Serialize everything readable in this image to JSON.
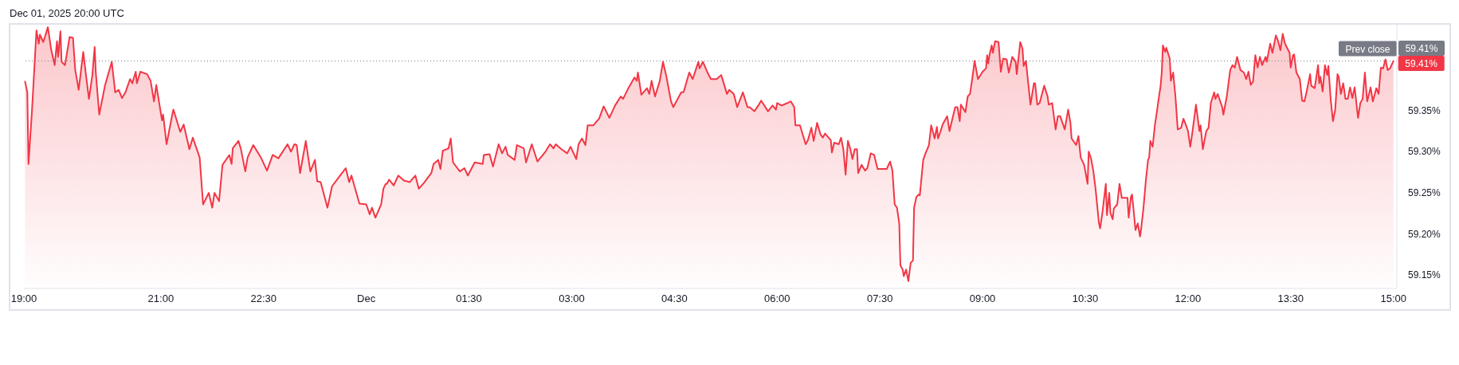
{
  "chart_data": {
    "type": "area",
    "title": "Dec 01, 2025 20:00 UTC",
    "color": "#f23645",
    "annotations": [
      "59.41%",
      {
        "text": "59.41%",
        "x": "2025-12-01T15:00",
        "y": 59.41
      }
    ],
    "x": [
      "2025-11-30T19:01",
      "2025-11-30T19:03",
      "2025-11-30T19:04",
      "2025-11-30T19:07",
      "2025-11-30T19:11",
      "2025-11-30T19:13",
      "2025-11-30T19:14",
      "2025-11-30T19:17",
      "2025-11-30T19:21",
      "2025-11-30T19:24",
      "2025-11-30T19:27",
      "2025-11-30T19:29",
      "2025-11-30T19:30",
      "2025-11-30T19:32",
      "2025-11-30T19:33",
      "2025-11-30T19:36",
      "2025-11-30T19:40",
      "2025-11-30T19:43",
      "2025-11-30T19:45",
      "2025-11-30T19:48",
      "2025-11-30T19:52",
      "2025-11-30T19:55",
      "2025-11-30T19:57",
      "2025-11-30T20:00",
      "2025-11-30T20:02",
      "2025-11-30T20:03",
      "2025-11-30T20:06",
      "2025-11-30T20:11",
      "2025-11-30T20:17",
      "2025-11-30T20:20",
      "2025-11-30T20:23",
      "2025-11-30T20:26",
      "2025-11-30T20:29",
      "2025-11-30T20:33",
      "2025-11-30T20:35",
      "2025-11-30T20:38",
      "2025-11-30T20:39",
      "2025-11-30T20:42",
      "2025-11-30T20:48",
      "2025-11-30T20:51",
      "2025-11-30T20:54",
      "2025-11-30T20:56",
      "2025-11-30T21:01",
      "2025-11-30T21:02",
      "2025-11-30T21:05",
      "2025-11-30T21:10",
      "2025-11-30T21:11",
      "2025-11-30T21:17",
      "2025-11-30T21:20",
      "2025-11-30T21:25",
      "2025-11-30T21:28",
      "2025-11-30T21:34",
      "2025-11-30T21:37",
      "2025-11-30T21:42",
      "2025-11-30T21:45",
      "2025-11-30T21:47",
      "2025-11-30T21:51",
      "2025-11-30T21:54",
      "2025-11-30T22:00",
      "2025-11-30T22:02",
      "2025-11-30T22:03",
      "2025-11-30T22:08",
      "2025-11-30T22:10",
      "2025-11-30T22:14",
      "2025-11-30T22:16",
      "2025-11-30T22:21",
      "2025-11-30T22:28",
      "2025-11-30T22:33",
      "2025-11-30T22:38",
      "2025-11-30T22:43",
      "2025-11-30T22:51",
      "2025-11-30T22:54",
      "2025-11-30T22:57",
      "2025-11-30T22:59",
      "2025-11-30T23:02",
      "2025-11-30T23:07",
      "2025-11-30T23:11",
      "2025-11-30T23:15",
      "2025-11-30T23:17",
      "2025-11-30T23:20",
      "2025-11-30T23:26",
      "2025-11-30T23:30",
      "2025-11-30T23:37",
      "2025-11-30T23:42",
      "2025-11-30T23:45",
      "2025-11-30T23:47",
      "2025-11-30T23:54",
      "2025-12-01T00:00",
      "2025-12-01T00:03",
      "2025-12-01T00:05",
      "2025-12-01T00:08",
      "2025-12-01T00:13",
      "2025-12-01T00:15",
      "2025-12-01T00:17",
      "2025-12-01T00:18",
      "2025-12-01T00:20",
      "2025-12-01T00:24",
      "2025-12-01T00:28",
      "2025-12-01T00:33",
      "2025-12-01T00:38",
      "2025-12-01T00:43",
      "2025-12-01T00:46",
      "2025-12-01T00:51",
      "2025-12-01T00:57",
      "2025-12-01T00:59",
      "2025-12-01T01:03",
      "2025-12-01T01:05",
      "2025-12-01T01:07",
      "2025-12-01T01:12",
      "2025-12-01T01:14",
      "2025-12-01T01:16",
      "2025-12-01T01:22",
      "2025-12-01T01:26",
      "2025-12-01T01:29",
      "2025-12-01T01:35",
      "2025-12-01T01:42",
      "2025-12-01T01:43",
      "2025-12-01T01:48",
      "2025-12-01T01:51",
      "2025-12-01T01:56",
      "2025-12-01T01:59",
      "2025-12-01T02:02",
      "2025-12-01T02:04",
      "2025-12-01T02:10",
      "2025-12-01T02:12",
      "2025-12-01T02:18",
      "2025-12-01T02:20",
      "2025-12-01T02:25",
      "2025-12-01T02:30",
      "2025-12-01T02:37",
      "2025-12-01T02:41",
      "2025-12-01T02:44",
      "2025-12-01T02:46",
      "2025-12-01T02:51",
      "2025-12-01T02:56",
      "2025-12-01T02:59",
      "2025-12-01T03:04",
      "2025-12-01T03:06",
      "2025-12-01T03:09",
      "2025-12-01T03:12",
      "2025-12-01T03:14",
      "2025-12-01T03:19",
      "2025-12-01T03:24",
      "2025-12-01T03:28",
      "2025-12-01T03:33",
      "2025-12-01T03:38",
      "2025-12-01T03:43",
      "2025-12-01T03:45",
      "2025-12-01T03:50",
      "2025-12-01T03:55",
      "2025-12-01T03:57",
      "2025-12-01T03:58",
      "2025-12-01T04:01",
      "2025-12-01T04:06",
      "2025-12-01T04:08",
      "2025-12-01T04:10",
      "2025-12-01T04:13",
      "2025-12-01T04:17",
      "2025-12-01T04:20",
      "2025-12-01T04:23",
      "2025-12-01T04:27",
      "2025-12-01T04:29",
      "2025-12-01T04:36",
      "2025-12-01T04:38",
      "2025-12-01T04:43",
      "2025-12-01T04:46",
      "2025-12-01T04:51",
      "2025-12-01T04:52",
      "2025-12-01T04:55",
      "2025-12-01T04:59",
      "2025-12-01T05:02",
      "2025-12-01T05:07",
      "2025-12-01T05:11",
      "2025-12-01T05:16",
      "2025-12-01T05:18",
      "2025-12-01T05:22",
      "2025-12-01T05:25",
      "2025-12-01T05:30",
      "2025-12-01T05:34",
      "2025-12-01T05:36",
      "2025-12-01T05:40",
      "2025-12-01T05:44",
      "2025-12-01T05:46",
      "2025-12-01T05:52",
      "2025-12-01T05:56",
      "2025-12-01T05:59",
      "2025-12-01T06:00",
      "2025-12-01T06:04",
      "2025-12-01T06:09",
      "2025-12-01T06:12",
      "2025-12-01T06:15",
      "2025-12-01T06:16",
      "2025-12-01T06:20",
      "2025-12-01T06:25",
      "2025-12-01T06:27",
      "2025-12-01T06:30",
      "2025-12-01T06:32",
      "2025-12-01T06:35",
      "2025-12-01T06:38",
      "2025-12-01T06:40",
      "2025-12-01T06:42",
      "2025-12-01T06:47",
      "2025-12-01T06:48",
      "2025-12-01T06:50",
      "2025-12-01T06:54",
      "2025-12-01T06:56",
      "2025-12-01T06:58",
      "2025-12-01T07:00",
      "2025-12-01T07:02",
      "2025-12-01T07:04",
      "2025-12-01T07:06",
      "2025-12-01T07:08",
      "2025-12-01T07:10",
      "2025-12-01T07:11",
      "2025-12-01T07:14",
      "2025-12-01T07:17",
      "2025-12-01T07:19",
      "2025-12-01T07:22",
      "2025-12-01T07:25",
      "2025-12-01T07:28",
      "2025-12-01T07:36",
      "2025-12-01T07:39",
      "2025-12-01T07:41",
      "2025-12-01T07:43",
      "2025-12-01T07:45",
      "2025-12-01T07:47",
      "2025-12-01T07:48",
      "2025-12-01T07:50",
      "2025-12-01T07:51",
      "2025-12-01T07:53",
      "2025-12-01T07:55",
      "2025-12-01T07:57",
      "2025-12-01T07:59",
      "2025-12-01T08:00",
      "2025-12-01T08:02",
      "2025-12-01T08:04",
      "2025-12-01T08:05",
      "2025-12-01T08:08",
      "2025-12-01T08:10",
      "2025-12-01T08:13",
      "2025-12-01T08:15",
      "2025-12-01T08:18",
      "2025-12-01T08:20",
      "2025-12-01T08:21",
      "2025-12-01T08:23",
      "2025-12-01T08:25",
      "2025-12-01T08:29",
      "2025-12-01T08:31",
      "2025-12-01T08:36",
      "2025-12-01T08:38",
      "2025-12-01T08:40",
      "2025-12-01T08:41",
      "2025-12-01T08:45",
      "2025-12-01T08:47",
      "2025-12-01T08:49",
      "2025-12-01T08:51",
      "2025-12-01T08:53",
      "2025-12-01T08:56",
      "2025-12-01T09:00",
      "2025-12-01T09:03",
      "2025-12-01T09:04",
      "2025-12-01T09:05",
      "2025-12-01T09:06",
      "2025-12-01T09:08",
      "2025-12-01T09:09",
      "2025-12-01T09:11",
      "2025-12-01T09:14",
      "2025-12-01T09:16",
      "2025-12-01T09:18",
      "2025-12-01T09:21",
      "2025-12-01T09:23",
      "2025-12-01T09:26",
      "2025-12-01T09:29",
      "2025-12-01T09:30",
      "2025-12-01T09:33",
      "2025-12-01T09:35",
      "2025-12-01T09:36",
      "2025-12-01T09:38",
      "2025-12-01T09:40",
      "2025-12-01T09:42",
      "2025-12-01T09:45",
      "2025-12-01T09:46",
      "2025-12-01T09:48",
      "2025-12-01T09:50",
      "2025-12-01T09:54",
      "2025-12-01T09:57",
      "2025-12-01T09:58",
      "2025-12-01T10:01",
      "2025-12-01T10:04",
      "2025-12-01T10:06",
      "2025-12-01T10:08",
      "2025-12-01T10:12",
      "2025-12-01T10:15",
      "2025-12-01T10:17",
      "2025-12-01T10:18",
      "2025-12-01T10:22",
      "2025-12-01T10:24",
      "2025-12-01T10:26",
      "2025-12-01T10:29",
      "2025-12-01T10:32",
      "2025-12-01T10:33",
      "2025-12-01T10:35",
      "2025-12-01T10:37",
      "2025-12-01T10:39",
      "2025-12-01T10:42",
      "2025-12-01T10:43",
      "2025-12-01T10:45",
      "2025-12-01T10:48",
      "2025-12-01T10:49",
      "2025-12-01T10:51",
      "2025-12-01T10:52",
      "2025-12-01T10:54",
      "2025-12-01T10:55",
      "2025-12-01T10:58",
      "2025-12-01T11:00",
      "2025-12-01T11:02",
      "2025-12-01T11:07",
      "2025-12-01T11:08",
      "2025-12-01T11:10",
      "2025-12-01T11:11",
      "2025-12-01T11:14",
      "2025-12-01T11:16",
      "2025-12-01T11:18",
      "2025-12-01T11:19",
      "2025-12-01T11:21",
      "2025-12-01T11:23",
      "2025-12-01T11:25",
      "2025-12-01T11:26",
      "2025-12-01T11:27",
      "2025-12-01T11:29",
      "2025-12-01T11:31",
      "2025-12-01T11:33",
      "2025-12-01T11:34",
      "2025-12-01T11:36",
      "2025-12-01T11:37",
      "2025-12-01T11:38",
      "2025-12-01T11:40",
      "2025-12-01T11:41",
      "2025-12-01T11:44",
      "2025-12-01T11:45",
      "2025-12-01T11:47",
      "2025-12-01T11:49",
      "2025-12-01T11:51",
      "2025-12-01T11:54",
      "2025-12-01T11:56",
      "2025-12-01T11:58",
      "2025-12-01T12:00",
      "2025-12-01T12:02",
      "2025-12-01T12:04",
      "2025-12-01T12:07",
      "2025-12-01T12:10",
      "2025-12-01T12:11",
      "2025-12-01T12:13",
      "2025-12-01T12:16",
      "2025-12-01T12:18",
      "2025-12-01T12:20",
      "2025-12-01T12:23",
      "2025-12-01T12:24",
      "2025-12-01T12:26",
      "2025-12-01T12:30",
      "2025-12-01T12:31",
      "2025-12-01T12:34",
      "2025-12-01T12:37",
      "2025-12-01T12:39",
      "2025-12-01T12:41",
      "2025-12-01T12:43",
      "2025-12-01T12:46",
      "2025-12-01T12:49",
      "2025-12-01T12:51",
      "2025-12-01T12:53",
      "2025-12-01T12:55",
      "2025-12-01T12:57",
      "2025-12-01T12:59",
      "2025-12-01T13:01",
      "2025-12-01T13:03",
      "2025-12-01T13:05",
      "2025-12-01T13:08",
      "2025-12-01T13:09",
      "2025-12-01T13:12",
      "2025-12-01T13:14",
      "2025-12-01T13:17",
      "2025-12-01T13:19",
      "2025-12-01T13:21",
      "2025-12-01T13:23",
      "2025-12-01T13:25",
      "2025-12-01T13:29",
      "2025-12-01T13:30",
      "2025-12-01T13:32",
      "2025-12-01T13:33",
      "2025-12-01T13:35",
      "2025-12-01T13:38",
      "2025-12-01T13:40",
      "2025-12-01T13:42",
      "2025-12-01T13:44",
      "2025-12-01T13:47",
      "2025-12-01T13:48",
      "2025-12-01T13:51",
      "2025-12-01T13:54",
      "2025-12-01T13:55",
      "2025-12-01T13:56",
      "2025-12-01T13:58",
      "2025-12-01T14:00",
      "2025-12-01T14:02",
      "2025-12-01T14:03",
      "2025-12-01T14:05",
      "2025-12-01T14:07",
      "2025-12-01T14:09",
      "2025-12-01T14:11",
      "2025-12-01T14:12",
      "2025-12-01T14:14",
      "2025-12-01T14:16",
      "2025-12-01T14:18",
      "2025-12-01T14:20",
      "2025-12-01T14:22",
      "2025-12-01T14:24",
      "2025-12-01T14:26",
      "2025-12-01T14:29",
      "2025-12-01T14:31",
      "2025-12-01T14:33",
      "2025-12-01T14:35",
      "2025-12-01T14:37",
      "2025-12-01T14:40",
      "2025-12-01T14:42",
      "2025-12-01T14:45",
      "2025-12-01T14:47",
      "2025-12-01T14:49",
      "2025-12-01T14:51",
      "2025-12-01T14:53",
      "2025-12-01T14:55",
      "2025-12-01T14:57",
      "2025-12-01T15:00"
    ],
    "values": [
      59.385,
      59.372,
      59.285,
      59.348,
      59.447,
      59.431,
      59.442,
      59.433,
      59.451,
      59.423,
      59.405,
      59.434,
      59.415,
      59.446,
      59.409,
      59.405,
      59.439,
      59.438,
      59.399,
      59.375,
      59.421,
      59.386,
      59.364,
      59.393,
      59.427,
      59.396,
      59.345,
      59.38,
      59.409,
      59.372,
      59.375,
      59.365,
      59.372,
      59.388,
      59.383,
      59.397,
      59.383,
      59.397,
      59.394,
      59.386,
      59.361,
      59.381,
      59.338,
      59.345,
      59.309,
      59.345,
      59.351,
      59.324,
      59.333,
      59.303,
      59.317,
      59.293,
      59.236,
      59.25,
      59.232,
      59.25,
      59.24,
      59.284,
      59.296,
      59.285,
      59.304,
      59.313,
      59.304,
      59.276,
      59.293,
      59.308,
      59.292,
      59.277,
      59.296,
      59.292,
      59.309,
      59.3,
      59.309,
      59.308,
      59.274,
      59.313,
      59.276,
      59.29,
      59.264,
      59.263,
      59.232,
      59.258,
      59.271,
      59.28,
      59.263,
      59.271,
      59.237,
      59.236,
      59.224,
      59.232,
      59.22,
      59.236,
      59.255,
      59.261,
      59.261,
      59.266,
      59.259,
      59.271,
      59.265,
      59.263,
      59.271,
      59.255,
      59.263,
      59.274,
      59.285,
      59.29,
      59.279,
      59.301,
      59.304,
      59.316,
      59.287,
      59.276,
      59.28,
      59.271,
      59.287,
      59.285,
      59.296,
      59.297,
      59.282,
      59.309,
      59.298,
      59.306,
      59.296,
      59.29,
      59.308,
      59.304,
      59.287,
      59.309,
      59.288,
      59.3,
      59.309,
      59.304,
      59.309,
      59.303,
      59.298,
      59.306,
      59.291,
      59.309,
      59.316,
      59.308,
      59.332,
      59.332,
      59.34,
      59.355,
      59.341,
      59.356,
      59.367,
      59.364,
      59.378,
      59.39,
      59.386,
      59.396,
      59.369,
      59.377,
      59.37,
      59.386,
      59.367,
      59.385,
      59.409,
      59.391,
      59.361,
      59.354,
      59.372,
      59.372,
      59.396,
      59.388,
      59.409,
      59.401,
      59.409,
      59.396,
      59.388,
      59.388,
      59.393,
      59.37,
      59.375,
      59.37,
      59.354,
      59.372,
      59.354,
      59.354,
      59.349,
      59.357,
      59.362,
      59.349,
      59.356,
      59.351,
      59.359,
      59.356,
      59.359,
      59.361,
      59.354,
      59.332,
      59.332,
      59.309,
      59.314,
      59.329,
      59.313,
      59.335,
      59.321,
      59.317,
      59.322,
      59.314,
      59.299,
      59.311,
      59.309,
      59.317,
      59.303,
      59.272,
      59.313,
      59.304,
      59.291,
      59.303,
      59.303,
      59.274,
      59.284,
      59.277,
      59.28,
      59.298,
      59.296,
      59.279,
      59.279,
      59.288,
      59.277,
      59.236,
      59.232,
      59.213,
      59.162,
      59.157,
      59.149,
      59.157,
      59.143,
      59.165,
      59.168,
      59.232,
      59.245,
      59.248,
      59.247,
      59.29,
      59.298,
      59.308,
      59.332,
      59.316,
      59.33,
      59.316,
      59.324,
      59.333,
      59.343,
      59.325,
      59.354,
      59.354,
      59.337,
      59.357,
      59.348,
      59.367,
      59.37,
      59.389,
      59.41,
      59.388,
      59.397,
      59.401,
      59.417,
      59.407,
      59.417,
      59.429,
      59.42,
      59.434,
      59.433,
      59.397,
      59.413,
      59.412,
      59.396,
      59.415,
      59.409,
      59.394,
      59.433,
      59.425,
      59.404,
      59.41,
      59.383,
      59.357,
      59.383,
      59.383,
      59.357,
      59.359,
      59.38,
      59.367,
      59.357,
      59.359,
      59.327,
      59.343,
      59.343,
      59.327,
      59.351,
      59.335,
      59.316,
      59.308,
      59.319,
      59.293,
      59.284,
      59.261,
      59.3,
      59.292,
      59.277,
      59.255,
      59.213,
      59.207,
      59.226,
      59.261,
      59.223,
      59.25,
      59.226,
      59.218,
      59.231,
      59.236,
      59.261,
      59.244,
      59.244,
      59.22,
      59.245,
      59.248,
      59.205,
      59.213,
      59.197,
      59.207,
      59.232,
      59.264,
      59.29,
      59.293,
      59.313,
      59.306,
      59.332,
      59.351,
      59.361,
      59.38,
      59.396,
      59.429,
      59.421,
      59.426,
      59.413,
      59.386,
      59.396,
      59.367,
      59.327,
      59.329,
      59.34,
      59.333,
      59.325,
      59.306,
      59.325,
      59.357,
      59.325,
      59.332,
      59.303,
      59.325,
      59.329,
      59.359,
      59.372,
      59.364,
      59.37,
      59.354,
      59.345,
      59.367,
      59.399,
      59.405,
      59.402,
      59.415,
      59.399,
      59.396,
      59.388,
      59.397,
      59.381,
      59.385,
      59.417,
      59.402,
      59.415,
      59.405,
      59.415,
      59.409,
      59.431,
      59.42,
      59.441,
      59.434,
      59.423,
      59.443,
      59.431,
      59.42,
      59.402,
      59.417,
      59.418,
      59.396,
      59.388,
      59.362,
      59.361,
      59.373,
      59.394,
      59.38,
      59.377,
      59.405,
      59.383,
      59.391,
      59.373,
      59.405,
      59.393,
      59.404,
      59.364,
      59.337,
      59.351,
      59.394,
      59.391,
      59.37,
      59.383,
      59.364,
      59.364,
      59.378,
      59.365,
      59.378,
      59.341,
      59.359,
      59.364,
      59.396,
      59.361,
      59.378,
      59.361,
      59.377,
      59.37,
      59.402,
      59.401,
      59.412,
      59.399,
      59.401,
      59.41
    ],
    "xlim": [
      "2025-11-30T19:00",
      "2025-12-01T15:03"
    ],
    "xticks": [
      {
        "value": "2025-11-30T19:00",
        "label": "19:00"
      },
      {
        "value": "2025-11-30T21:00",
        "label": "21:00"
      },
      {
        "value": "2025-11-30T22:30",
        "label": "22:30"
      },
      {
        "value": "2025-12-01T00:00",
        "label": "Dec"
      },
      {
        "value": "2025-12-01T01:30",
        "label": "01:30"
      },
      {
        "value": "2025-12-01T03:00",
        "label": "03:00"
      },
      {
        "value": "2025-12-01T04:30",
        "label": "04:30"
      },
      {
        "value": "2025-12-01T06:00",
        "label": "06:00"
      },
      {
        "value": "2025-12-01T07:30",
        "label": "07:30"
      },
      {
        "value": "2025-12-01T09:00",
        "label": "09:00"
      },
      {
        "value": "2025-12-01T10:30",
        "label": "10:30"
      },
      {
        "value": "2025-12-01T12:00",
        "label": "12:00"
      },
      {
        "value": "2025-12-01T13:30",
        "label": "13:30"
      },
      {
        "value": "2025-12-01T15:00",
        "label": "15:00"
      }
    ],
    "ylim": [
      59.134,
      59.455
    ],
    "yticks": [
      {
        "value": 59.15,
        "label": "59.15%"
      },
      {
        "value": 59.2,
        "label": "59.20%"
      },
      {
        "value": 59.25,
        "label": "59.25%"
      },
      {
        "value": 59.3,
        "label": "59.30%"
      },
      {
        "value": 59.35,
        "label": "59.35%"
      }
    ],
    "ref_lines": [
      {
        "axis": "y",
        "value": 59.41,
        "label": "Prev close",
        "line_style": "dotted",
        "color": "#787b86"
      }
    ]
  }
}
